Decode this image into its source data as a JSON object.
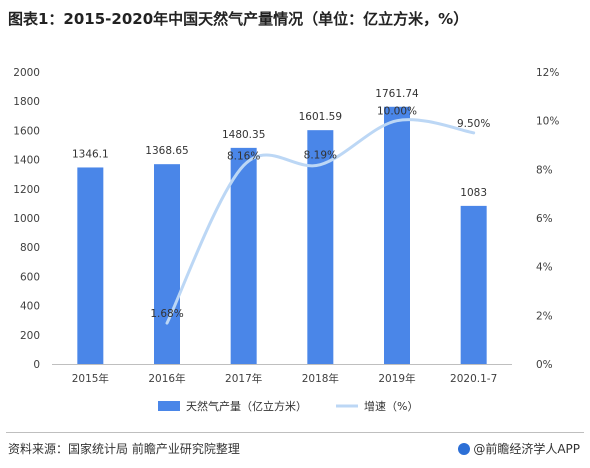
{
  "title": "图表1：2015-2020年中国天然气产量情况（单位：亿立方米，%）",
  "source": "资料来源：国家统计局 前瞻产业研究院整理",
  "brand": "@前瞻经济学人APP",
  "chart_data": {
    "type": "bar",
    "categories": [
      "2015年",
      "2016年",
      "2017年",
      "2018年",
      "2019年",
      "2020.1-7"
    ],
    "series": [
      {
        "name": "天然气产量（亿立方米）",
        "type": "bar",
        "axis": "left",
        "color": "#4a86e8",
        "values": [
          1346.1,
          1368.65,
          1480.35,
          1601.59,
          1761.74,
          1083
        ],
        "labels": [
          "1346.1",
          "1368.65",
          "1480.35",
          "1601.59",
          "1761.74",
          "1083"
        ]
      },
      {
        "name": "增速（%）",
        "type": "line",
        "smooth": true,
        "axis": "right",
        "color": "#bcd7f5",
        "values": [
          null,
          1.68,
          8.16,
          8.19,
          10.0,
          9.5
        ],
        "labels": [
          "",
          "1.68%",
          "8.16%",
          "8.19%",
          "10.00%",
          "9.50%"
        ]
      }
    ],
    "y_left": {
      "min": 0,
      "max": 2000,
      "step": 200,
      "ticks": [
        "0",
        "200",
        "400",
        "600",
        "800",
        "1000",
        "1200",
        "1400",
        "1600",
        "1800",
        "2000"
      ]
    },
    "y_right": {
      "min": 0,
      "max": 12,
      "step": 2,
      "ticks": [
        "0%",
        "2%",
        "4%",
        "6%",
        "8%",
        "10%",
        "12%"
      ]
    },
    "grid": false,
    "legend_position": "bottom"
  }
}
